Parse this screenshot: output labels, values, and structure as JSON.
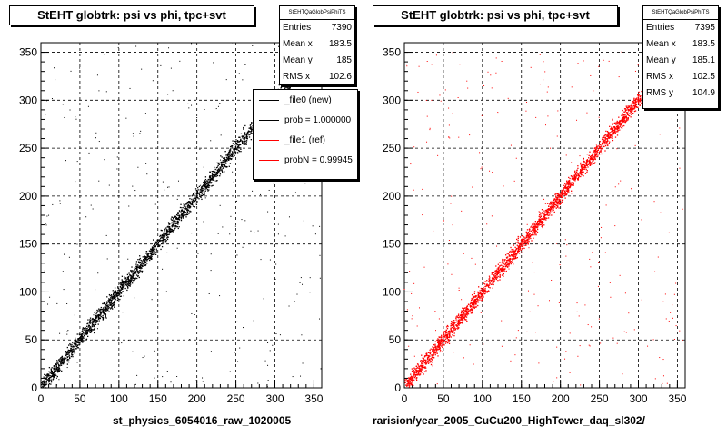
{
  "chart_data": [
    {
      "type": "scatter",
      "title": "StEHT globtrk: psi vs phi, tpc+svt",
      "xlabel": "st_physics_6054016_raw_1020005",
      "ylabel": "",
      "xlim": [
        0,
        360
      ],
      "ylim": [
        0,
        360
      ],
      "xticks": [
        0,
        50,
        100,
        150,
        200,
        250,
        300,
        350
      ],
      "yticks": [
        0,
        50,
        100,
        150,
        200,
        250,
        300,
        350
      ],
      "grid": true,
      "color": "#000000",
      "series": [
        {
          "x": [
            5,
            10,
            20,
            30,
            40,
            50,
            60,
            70,
            80,
            90,
            100,
            110,
            120,
            130,
            140,
            150,
            160,
            170,
            180,
            190,
            200,
            210,
            220,
            230,
            240,
            250,
            260,
            270,
            280,
            290,
            300,
            310,
            320,
            330,
            340,
            350
          ],
          "y": [
            5,
            10,
            20,
            30,
            40,
            50,
            60,
            70,
            80,
            90,
            100,
            110,
            120,
            130,
            140,
            150,
            160,
            170,
            180,
            190,
            200,
            210,
            220,
            230,
            240,
            250,
            260,
            270,
            280,
            290,
            300,
            310,
            320,
            330,
            340,
            350
          ]
        }
      ],
      "stats": {
        "title": "StEHTQaGlobPsiPhiTS",
        "entries": "7390",
        "mean_x": "183.5",
        "mean_y": "185",
        "rms_x": "102.6"
      },
      "legend": [
        {
          "label": "_file0 (new)",
          "color": "#000000"
        },
        {
          "label": "prob = 1.000000",
          "color": "#000000"
        },
        {
          "label": "_file1 (ref)",
          "color": "#ff0000"
        },
        {
          "label": "probN = 0.99945",
          "color": "#ff0000"
        }
      ]
    },
    {
      "type": "scatter",
      "title": "StEHT globtrk: psi vs phi, tpc+svt",
      "xlabel": "rarision/year_2005_CuCu200_HighTower_daq_sl302/",
      "ylabel": "",
      "xlim": [
        0,
        360
      ],
      "ylim": [
        0,
        360
      ],
      "xticks": [
        0,
        50,
        100,
        150,
        200,
        250,
        300,
        350
      ],
      "yticks": [
        0,
        50,
        100,
        150,
        200,
        250,
        300,
        350
      ],
      "grid": true,
      "color": "#ff0000",
      "series": [
        {
          "x": [
            5,
            10,
            20,
            30,
            40,
            50,
            60,
            70,
            80,
            90,
            100,
            110,
            120,
            130,
            140,
            150,
            160,
            170,
            180,
            190,
            200,
            210,
            220,
            230,
            240,
            250,
            260,
            270,
            280,
            290,
            300,
            310,
            320,
            330,
            340,
            350
          ],
          "y": [
            5,
            10,
            20,
            30,
            40,
            50,
            60,
            70,
            80,
            90,
            100,
            110,
            120,
            130,
            140,
            150,
            160,
            170,
            180,
            190,
            200,
            210,
            220,
            230,
            240,
            250,
            260,
            270,
            280,
            290,
            300,
            310,
            320,
            330,
            340,
            350
          ]
        }
      ],
      "stats": {
        "title": "StEHTQaGlobPsiPhiTS",
        "entries": "7395",
        "mean_x": "183.5",
        "mean_y": "185.1",
        "rms_x": "102.5",
        "rms_y": "104.9"
      }
    }
  ],
  "stats_labels": {
    "entries": "Entries",
    "mean_x": "Mean x",
    "mean_y": "Mean y",
    "rms_x": "RMS x",
    "rms_y": "RMS y"
  }
}
